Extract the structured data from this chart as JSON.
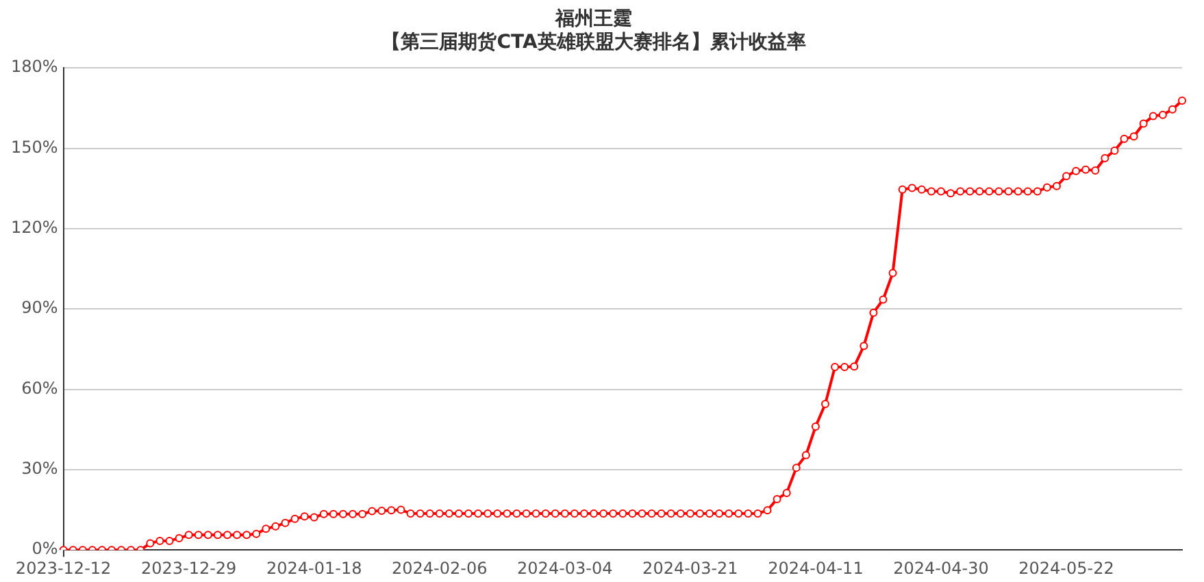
{
  "chart_data": {
    "type": "line",
    "title": "福州王霆",
    "subtitle": "【第三届期货CTA英雄联盟大赛排名】累计收益率",
    "categories": [
      "2023-12-12",
      null,
      null,
      null,
      null,
      null,
      null,
      null,
      null,
      null,
      null,
      null,
      null,
      "2023-12-29",
      null,
      null,
      null,
      null,
      null,
      null,
      null,
      null,
      null,
      null,
      null,
      null,
      "2024-01-18",
      null,
      null,
      null,
      null,
      null,
      null,
      null,
      null,
      null,
      null,
      null,
      null,
      "2024-02-06",
      null,
      null,
      null,
      null,
      null,
      null,
      null,
      null,
      null,
      null,
      null,
      null,
      "2024-03-04",
      null,
      null,
      null,
      null,
      null,
      null,
      null,
      null,
      null,
      null,
      null,
      null,
      "2024-03-21",
      null,
      null,
      null,
      null,
      null,
      null,
      null,
      null,
      null,
      null,
      null,
      null,
      "2024-04-11",
      null,
      null,
      null,
      null,
      null,
      null,
      null,
      null,
      null,
      null,
      null,
      null,
      "2024-04-30",
      null,
      null,
      null,
      null,
      null,
      null,
      null,
      null,
      null,
      null,
      null,
      null,
      "2024-05-22",
      null,
      null,
      null,
      null,
      null,
      null,
      null,
      null,
      null,
      null,
      null,
      null
    ],
    "series": [
      {
        "color": "#ff0000",
        "values": [
          0,
          0,
          0,
          0,
          0,
          0,
          0,
          0,
          0,
          2.5,
          3.4,
          3.4,
          4.4,
          5.6,
          5.6,
          5.6,
          5.6,
          5.6,
          5.6,
          5.6,
          6.0,
          7.9,
          8.8,
          10.1,
          11.6,
          12.5,
          12.2,
          13.4,
          13.4,
          13.4,
          13.4,
          13.4,
          14.5,
          14.6,
          14.8,
          15.0,
          13.6,
          13.6,
          13.6,
          13.6,
          13.6,
          13.6,
          13.6,
          13.6,
          13.6,
          13.6,
          13.6,
          13.6,
          13.6,
          13.6,
          13.6,
          13.6,
          13.6,
          13.6,
          13.6,
          13.6,
          13.6,
          13.6,
          13.6,
          13.6,
          13.6,
          13.6,
          13.6,
          13.6,
          13.6,
          13.6,
          13.6,
          13.6,
          13.6,
          13.6,
          13.6,
          13.6,
          13.6,
          14.8,
          19.0,
          21.3,
          30.7,
          35.4,
          46.1,
          54.5,
          68.3,
          68.3,
          68.5,
          76.2,
          88.6,
          93.5,
          103.4,
          134.6,
          135.2,
          134.6,
          133.9,
          133.9,
          133.2,
          133.9,
          133.9,
          133.9,
          133.9,
          133.9,
          133.9,
          133.9,
          133.9,
          133.9,
          135.4,
          135.9,
          139.6,
          141.5,
          142.0,
          141.7,
          146.3,
          149.1,
          153.5,
          154.4,
          159.2,
          162.0,
          162.5,
          164.5,
          167.8
        ]
      }
    ],
    "ylim": [
      0,
      180
    ],
    "yticks": [
      {
        "value": 0,
        "label": "0%"
      },
      {
        "value": 30,
        "label": "30%"
      },
      {
        "value": 60,
        "label": "60%"
      },
      {
        "value": 90,
        "label": "90%"
      },
      {
        "value": 120,
        "label": "120%"
      },
      {
        "value": 150,
        "label": "150%"
      },
      {
        "value": 180,
        "label": "180%"
      }
    ],
    "grid": "y",
    "marker": "circle",
    "line_style": "solid",
    "legend": false
  }
}
